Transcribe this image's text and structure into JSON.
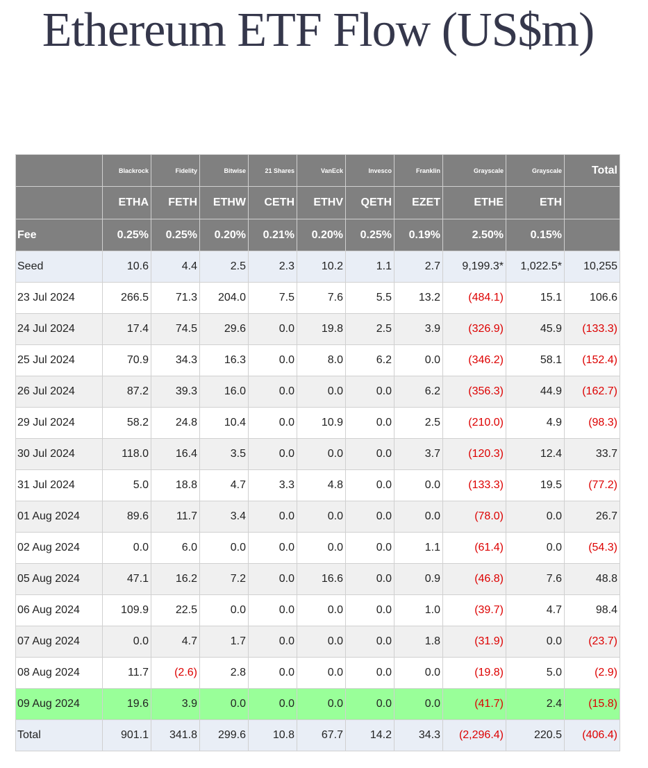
{
  "title": "Ethereum ETF Flow (US$m)",
  "issuers": [
    "",
    "Blackrock",
    "Fidelity",
    "Bitwise",
    "21 Shares",
    "VanEck",
    "Invesco",
    "Franklin",
    "Grayscale",
    "Grayscale",
    "Total"
  ],
  "tickers": [
    "",
    "ETHA",
    "FETH",
    "ETHW",
    "CETH",
    "ETHV",
    "QETH",
    "EZET",
    "ETHE",
    "ETH",
    ""
  ],
  "fees": [
    "Fee",
    "0.25%",
    "0.25%",
    "0.20%",
    "0.21%",
    "0.20%",
    "0.25%",
    "0.19%",
    "2.50%",
    "0.15%",
    ""
  ],
  "rows": [
    {
      "cells": [
        "Seed",
        "10.6",
        "4.4",
        "2.5",
        "2.3",
        "10.2",
        "1.1",
        "2.7",
        "9,199.3*",
        "1,022.5*",
        "10,255"
      ],
      "style": "seed"
    },
    {
      "cells": [
        "23 Jul 2024",
        "266.5",
        "71.3",
        "204.0",
        "7.5",
        "7.6",
        "5.5",
        "13.2",
        "(484.1)",
        "15.1",
        "106.6"
      ],
      "style": "odd"
    },
    {
      "cells": [
        "24 Jul 2024",
        "17.4",
        "74.5",
        "29.6",
        "0.0",
        "19.8",
        "2.5",
        "3.9",
        "(326.9)",
        "45.9",
        "(133.3)"
      ],
      "style": "even"
    },
    {
      "cells": [
        "25 Jul 2024",
        "70.9",
        "34.3",
        "16.3",
        "0.0",
        "8.0",
        "6.2",
        "0.0",
        "(346.2)",
        "58.1",
        "(152.4)"
      ],
      "style": "odd"
    },
    {
      "cells": [
        "26 Jul 2024",
        "87.2",
        "39.3",
        "16.0",
        "0.0",
        "0.0",
        "0.0",
        "6.2",
        "(356.3)",
        "44.9",
        "(162.7)"
      ],
      "style": "even"
    },
    {
      "cells": [
        "29 Jul 2024",
        "58.2",
        "24.8",
        "10.4",
        "0.0",
        "10.9",
        "0.0",
        "2.5",
        "(210.0)",
        "4.9",
        "(98.3)"
      ],
      "style": "odd"
    },
    {
      "cells": [
        "30 Jul 2024",
        "118.0",
        "16.4",
        "3.5",
        "0.0",
        "0.0",
        "0.0",
        "3.7",
        "(120.3)",
        "12.4",
        "33.7"
      ],
      "style": "even"
    },
    {
      "cells": [
        "31 Jul 2024",
        "5.0",
        "18.8",
        "4.7",
        "3.3",
        "4.8",
        "0.0",
        "0.0",
        "(133.3)",
        "19.5",
        "(77.2)"
      ],
      "style": "odd"
    },
    {
      "cells": [
        "01 Aug 2024",
        "89.6",
        "11.7",
        "3.4",
        "0.0",
        "0.0",
        "0.0",
        "0.0",
        "(78.0)",
        "0.0",
        "26.7"
      ],
      "style": "even"
    },
    {
      "cells": [
        "02 Aug 2024",
        "0.0",
        "6.0",
        "0.0",
        "0.0",
        "0.0",
        "0.0",
        "1.1",
        "(61.4)",
        "0.0",
        "(54.3)"
      ],
      "style": "odd"
    },
    {
      "cells": [
        "05 Aug 2024",
        "47.1",
        "16.2",
        "7.2",
        "0.0",
        "16.6",
        "0.0",
        "0.9",
        "(46.8)",
        "7.6",
        "48.8"
      ],
      "style": "even"
    },
    {
      "cells": [
        "06 Aug 2024",
        "109.9",
        "22.5",
        "0.0",
        "0.0",
        "0.0",
        "0.0",
        "1.0",
        "(39.7)",
        "4.7",
        "98.4"
      ],
      "style": "odd"
    },
    {
      "cells": [
        "07 Aug 2024",
        "0.0",
        "4.7",
        "1.7",
        "0.0",
        "0.0",
        "0.0",
        "1.8",
        "(31.9)",
        "0.0",
        "(23.7)"
      ],
      "style": "even"
    },
    {
      "cells": [
        "08 Aug 2024",
        "11.7",
        "(2.6)",
        "2.8",
        "0.0",
        "0.0",
        "0.0",
        "0.0",
        "(19.8)",
        "5.0",
        "(2.9)"
      ],
      "style": "odd"
    },
    {
      "cells": [
        "09 Aug 2024",
        "19.6",
        "3.9",
        "0.0",
        "0.0",
        "0.0",
        "0.0",
        "0.0",
        "(41.7)",
        "2.4",
        "(15.8)"
      ],
      "style": "hl"
    },
    {
      "cells": [
        "Total",
        "901.1",
        "341.8",
        "299.6",
        "10.8",
        "67.7",
        "14.2",
        "34.3",
        "(2,296.4)",
        "220.5",
        "(406.4)"
      ],
      "style": "total"
    }
  ],
  "colors": {
    "header_bg": "#808080",
    "negative": "#dd0000",
    "highlight_row": "#99ff99",
    "title": "#35374b"
  }
}
